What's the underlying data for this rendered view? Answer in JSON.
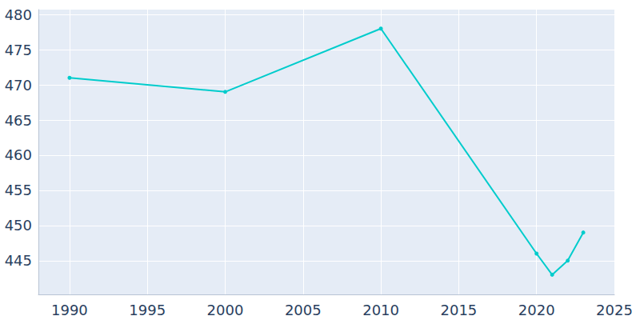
{
  "chart_data": {
    "type": "line",
    "x": [
      1990,
      2000,
      2010,
      2020,
      2021,
      2022,
      2023
    ],
    "values": [
      471,
      469,
      478,
      446,
      443,
      445,
      449
    ],
    "color": "#00cccc",
    "marker": "circle",
    "xlim": [
      1988,
      2025
    ],
    "xticks": [
      1990,
      1995,
      2000,
      2005,
      2010,
      2015,
      2020,
      2025
    ],
    "ylim": [
      440.2,
      480.7
    ],
    "yticks": [
      445,
      450,
      455,
      460,
      465,
      470,
      475,
      480
    ],
    "grid": true
  }
}
